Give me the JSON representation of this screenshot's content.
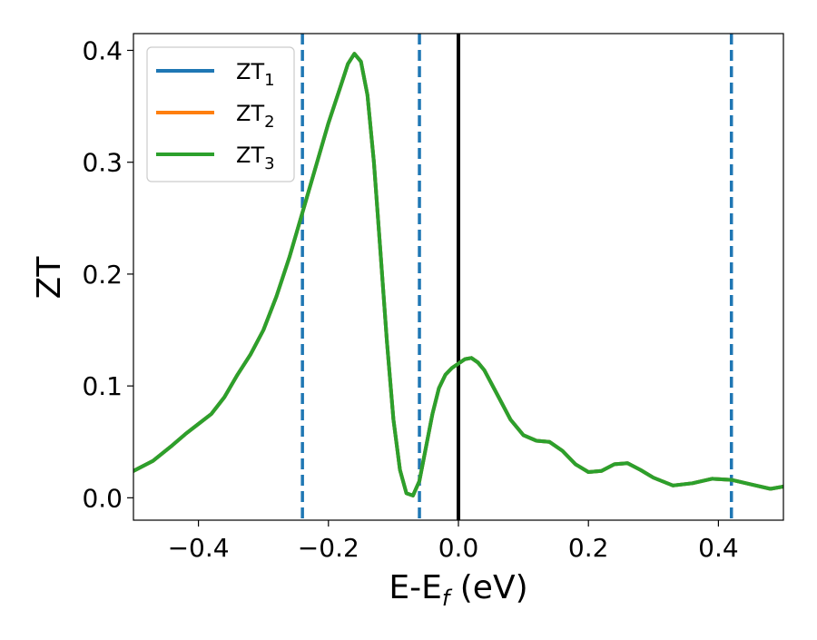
{
  "chart_data": {
    "type": "line",
    "xlabel": "E-E",
    "xlabel_sub": "f",
    "xlabel_unit": " (eV)",
    "ylabel": "ZT",
    "xlim": [
      -0.5,
      0.5
    ],
    "ylim": [
      -0.02,
      0.415
    ],
    "grid": false,
    "legend_position": "top-left",
    "x_ticks": [
      -0.4,
      -0.2,
      0.0,
      0.2,
      0.4
    ],
    "x_tick_labels": [
      "−0.4",
      "−0.2",
      "0.0",
      "0.2",
      "0.4"
    ],
    "y_ticks": [
      0.0,
      0.1,
      0.2,
      0.3,
      0.4
    ],
    "y_tick_labels": [
      "0.0",
      "0.1",
      "0.2",
      "0.3",
      "0.4"
    ],
    "series": [
      {
        "name": "ZT",
        "name_sub": "1",
        "color": "#1f77b4"
      },
      {
        "name": "ZT",
        "name_sub": "2",
        "color": "#ff7f0e"
      },
      {
        "name": "ZT",
        "name_sub": "3",
        "color": "#2ca02c"
      }
    ],
    "x": [
      -0.5,
      -0.47,
      -0.44,
      -0.42,
      -0.4,
      -0.38,
      -0.36,
      -0.34,
      -0.32,
      -0.3,
      -0.28,
      -0.26,
      -0.24,
      -0.22,
      -0.2,
      -0.18,
      -0.17,
      -0.16,
      -0.15,
      -0.14,
      -0.13,
      -0.12,
      -0.11,
      -0.1,
      -0.09,
      -0.08,
      -0.07,
      -0.06,
      -0.05,
      -0.04,
      -0.03,
      -0.02,
      -0.01,
      0.0,
      0.01,
      0.02,
      0.03,
      0.04,
      0.06,
      0.08,
      0.1,
      0.12,
      0.14,
      0.16,
      0.18,
      0.2,
      0.22,
      0.24,
      0.26,
      0.28,
      0.3,
      0.33,
      0.36,
      0.39,
      0.42,
      0.45,
      0.48,
      0.5
    ],
    "y": [
      0.024,
      0.033,
      0.047,
      0.057,
      0.066,
      0.075,
      0.09,
      0.11,
      0.128,
      0.15,
      0.18,
      0.215,
      0.255,
      0.295,
      0.335,
      0.37,
      0.388,
      0.397,
      0.39,
      0.36,
      0.3,
      0.22,
      0.14,
      0.07,
      0.025,
      0.004,
      0.002,
      0.015,
      0.045,
      0.075,
      0.098,
      0.11,
      0.116,
      0.12,
      0.124,
      0.125,
      0.121,
      0.114,
      0.092,
      0.07,
      0.056,
      0.051,
      0.05,
      0.042,
      0.03,
      0.023,
      0.024,
      0.03,
      0.031,
      0.025,
      0.018,
      0.011,
      0.013,
      0.017,
      0.016,
      0.012,
      0.008,
      0.01
    ],
    "vlines": [
      {
        "x": -0.24,
        "style": "dashed",
        "color": "#1f77b4"
      },
      {
        "x": -0.06,
        "style": "dashed",
        "color": "#1f77b4"
      },
      {
        "x": 0.0,
        "style": "solid",
        "color": "#000000"
      },
      {
        "x": 0.42,
        "style": "dashed",
        "color": "#1f77b4"
      }
    ]
  }
}
